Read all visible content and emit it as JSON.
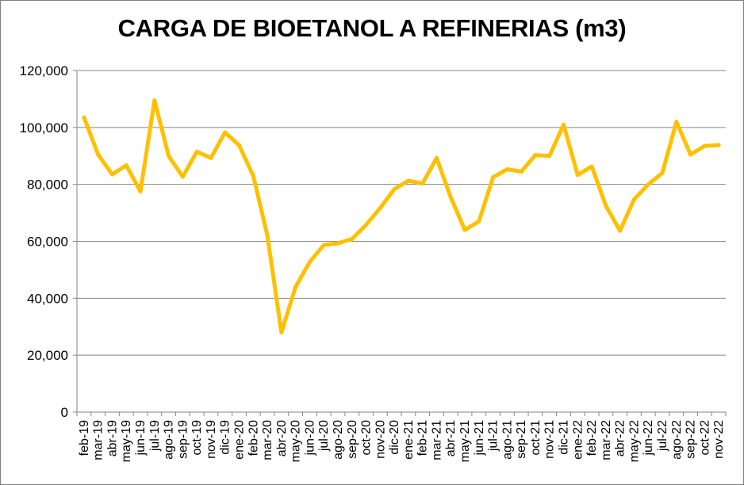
{
  "chart_data": {
    "type": "line",
    "title": "CARGA DE BIOETANOL A REFINERIAS (m3)",
    "xlabel": "",
    "ylabel": "",
    "ylim": [
      0,
      120000
    ],
    "yticks": [
      0,
      20000,
      40000,
      60000,
      80000,
      100000,
      120000
    ],
    "ytick_labels": [
      "0",
      "20,000",
      "40,000",
      "60,000",
      "80,000",
      "100,000",
      "120,000"
    ],
    "grid": true,
    "legend": "none",
    "line_color": "#FFC000",
    "categories": [
      "feb-19",
      "mar-19",
      "abr-19",
      "may-19",
      "jun-19",
      "jul-19",
      "ago-19",
      "sep-19",
      "oct-19",
      "nov-19",
      "dic-19",
      "ene-20",
      "feb-20",
      "mar-20",
      "abr-20",
      "may-20",
      "jun-20",
      "jul-20",
      "ago-20",
      "sep-20",
      "oct-20",
      "nov-20",
      "dic-20",
      "ene-21",
      "feb-21",
      "mar-21",
      "abr-21",
      "may-21",
      "jun-21",
      "jul-21",
      "ago-21",
      "sep-21",
      "oct-21",
      "nov-21",
      "dic-21",
      "ene-22",
      "feb-22",
      "mar-22",
      "abr-22",
      "may-22",
      "jun-22",
      "jul-22",
      "ago-22",
      "sep-22",
      "oct-22",
      "nov-22"
    ],
    "series": [
      {
        "values": [
          103500,
          90500,
          83500,
          86700,
          77500,
          109500,
          90000,
          82700,
          91500,
          89300,
          98300,
          93700,
          83000,
          62000,
          28000,
          44000,
          52700,
          58700,
          59300,
          60800,
          65800,
          71700,
          78300,
          81300,
          80300,
          89300,
          75500,
          64000,
          67000,
          82500,
          85300,
          84500,
          90300,
          90000,
          101000,
          83300,
          86300,
          72500,
          63700,
          74700,
          80000,
          84000,
          102000,
          90500,
          93500,
          93800
        ]
      }
    ]
  }
}
